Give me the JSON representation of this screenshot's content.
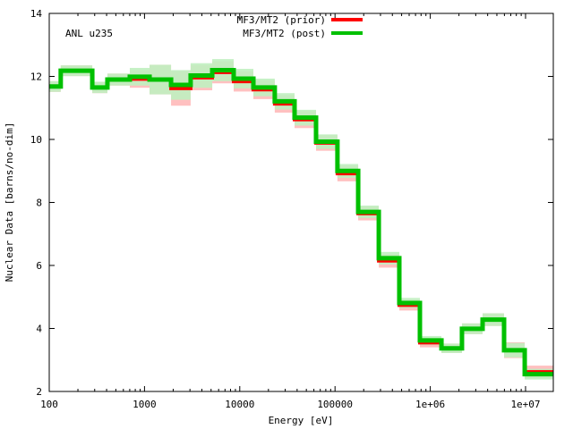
{
  "chart_data": {
    "type": "line",
    "style": "histogram-steps",
    "title": "",
    "annotation": "ANL u235",
    "xlabel": "Energy [eV]",
    "ylabel": "Nuclear Data [barns/no-dim]",
    "xscale": "log",
    "xlim": [
      100,
      20000000
    ],
    "ylim": [
      2,
      14
    ],
    "xticks": [
      100,
      1000,
      10000,
      100000,
      1000000,
      10000000
    ],
    "xtick_labels": [
      "100",
      "1000",
      "10000",
      "100000",
      "1e+06",
      "1e+07"
    ],
    "yticks": [
      2,
      4,
      6,
      8,
      10,
      12,
      14
    ],
    "ytick_labels": [
      "2",
      "4",
      "6",
      "8",
      "10",
      "12",
      "14"
    ],
    "grid": false,
    "legend_position": "top-center",
    "bin_edges": [
      100,
      132,
      283,
      408,
      701,
      1130,
      1900,
      3050,
      5140,
      8630,
      13900,
      23300,
      37600,
      63200,
      106000,
      175000,
      288000,
      473000,
      778000,
      1310000,
      2150000,
      3540000,
      5950000,
      9800000,
      20000000
    ],
    "series": [
      {
        "name": "MF3/MT2 (prior)",
        "color": "#ff0000",
        "band_color": "#ffc0c0",
        "values": [
          11.68,
          12.18,
          11.65,
          11.9,
          11.92,
          11.9,
          11.62,
          11.96,
          12.13,
          11.84,
          11.58,
          11.13,
          10.63,
          9.89,
          8.92,
          7.65,
          6.15,
          4.74,
          3.55,
          3.37,
          3.99,
          4.28,
          3.31,
          2.62
        ],
        "uncertainty": [
          0.17,
          0.17,
          0.18,
          0.19,
          0.28,
          0.47,
          0.55,
          0.4,
          0.35,
          0.32,
          0.3,
          0.28,
          0.27,
          0.25,
          0.25,
          0.22,
          0.22,
          0.17,
          0.15,
          0.15,
          0.17,
          0.2,
          0.25,
          0.2
        ]
      },
      {
        "name": "MF3/MT2 (post)",
        "color": "#00c000",
        "band_color": "#c0f0c0",
        "values": [
          11.68,
          12.18,
          11.65,
          11.9,
          11.99,
          11.9,
          11.73,
          12.03,
          12.2,
          11.93,
          11.65,
          11.21,
          10.69,
          9.93,
          9.0,
          7.7,
          6.23,
          4.81,
          3.62,
          3.37,
          3.99,
          4.28,
          3.31,
          2.55
        ],
        "uncertainty": [
          0.17,
          0.17,
          0.18,
          0.19,
          0.28,
          0.47,
          0.47,
          0.39,
          0.35,
          0.31,
          0.28,
          0.26,
          0.25,
          0.23,
          0.22,
          0.2,
          0.2,
          0.16,
          0.14,
          0.15,
          0.17,
          0.2,
          0.23,
          0.17
        ]
      }
    ]
  }
}
